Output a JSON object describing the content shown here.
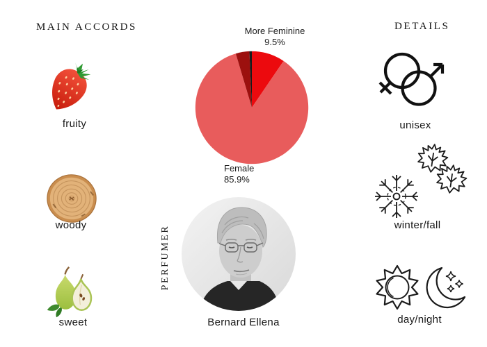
{
  "page": {
    "background": "#ffffff",
    "text_color": "#1a1a1a"
  },
  "main_accords": {
    "title": "MAIN ACCORDS",
    "items": [
      {
        "icon": "strawberry-icon",
        "label": "fruity"
      },
      {
        "icon": "wood-slice-icon",
        "label": "woody"
      },
      {
        "icon": "pear-icon",
        "label": "sweet"
      }
    ]
  },
  "perfumer": {
    "section_title": "PERFUMER",
    "name": "Bernard Ellena",
    "photo": "grayscale circular portrait of a man with light hair and rimless glasses"
  },
  "details": {
    "title": "DETAILS",
    "items": [
      {
        "icon": "gender-unisex-icon",
        "label": "unisex"
      },
      {
        "icon": "snowflake-maple-leaves-icon",
        "label": "winter/fall"
      },
      {
        "icon": "sun-moon-icon",
        "label": "day/night"
      }
    ]
  },
  "chart_data": {
    "type": "pie",
    "title": "",
    "legend_position": "none",
    "start_angle_deg": -90,
    "direction": "clockwise",
    "slices": [
      {
        "label": "More Feminine",
        "pct_label": "9.5%",
        "value": 9.5,
        "color": "#ec0a0e"
      },
      {
        "label": "Female",
        "pct_label": "85.9%",
        "value": 85.9,
        "color": "#e85c5c"
      },
      {
        "label": "",
        "pct_label": "",
        "value": 3.9,
        "color": "#9c100e"
      },
      {
        "label": "",
        "pct_label": "",
        "value": 0.7,
        "color": "#1a1a1a"
      }
    ]
  }
}
